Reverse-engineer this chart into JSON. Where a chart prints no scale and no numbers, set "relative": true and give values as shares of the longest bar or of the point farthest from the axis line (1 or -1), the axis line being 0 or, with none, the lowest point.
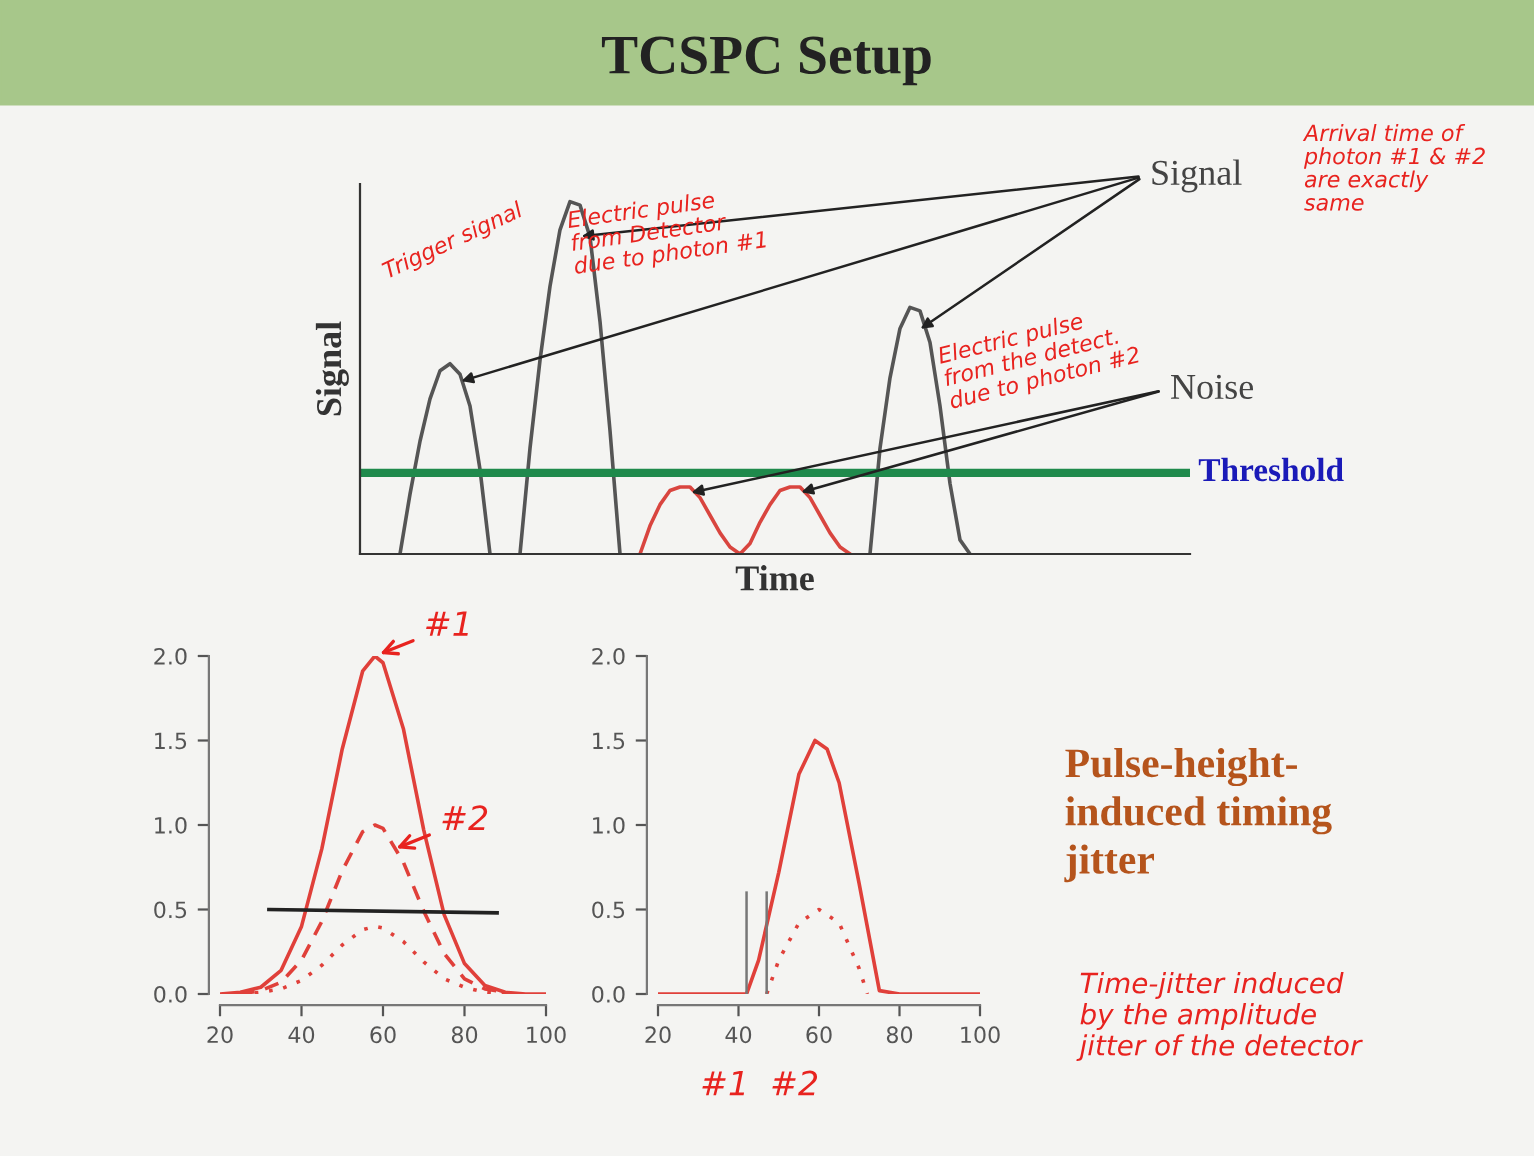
{
  "chart_data": [
    {
      "type": "line",
      "title": "TCSPC Setup",
      "xlabel": "Time",
      "ylabel": "Signal",
      "relative": true,
      "grid": false,
      "categories": [
        null,
        null,
        null,
        null,
        null,
        null,
        null,
        null,
        null,
        null,
        null,
        null,
        null,
        null,
        null,
        null,
        null,
        null,
        null,
        null,
        null,
        null,
        null,
        null,
        null,
        null,
        null,
        null,
        null,
        null,
        null,
        null,
        null,
        null,
        null,
        null,
        null,
        null,
        null,
        null,
        null,
        null,
        null,
        null,
        null,
        null,
        null,
        null,
        null,
        null,
        null,
        null,
        null,
        null,
        null,
        null,
        null,
        null,
        null,
        null,
        null,
        null,
        null,
        null,
        null,
        null,
        null,
        null,
        null,
        null,
        null,
        null,
        null,
        null,
        null,
        null,
        null,
        null,
        null,
        null,
        null,
        null,
        null,
        null
      ],
      "series": [
        {
          "name": "Signal",
          "color": "#555555",
          "values": [
            null,
            null,
            null,
            null,
            0,
            0.17,
            0.32,
            0.44,
            0.52,
            0.54,
            0.51,
            0.42,
            0.24,
            0,
            null,
            null,
            0,
            0.3,
            0.55,
            0.76,
            0.92,
            1.0,
            0.99,
            0.9,
            0.66,
            0.35,
            0,
            null,
            null,
            null,
            null,
            null,
            null,
            null,
            null,
            null,
            null,
            null,
            null,
            null,
            null,
            null,
            null,
            null,
            null,
            null,
            null,
            null,
            null,
            null,
            null,
            0,
            0.3,
            0.5,
            0.64,
            0.7,
            0.69,
            0.6,
            0.42,
            0.2,
            0.04,
            0,
            null,
            null,
            null,
            null,
            null,
            null,
            null,
            null,
            null,
            null,
            null,
            null,
            null,
            null,
            null,
            null,
            null,
            null,
            null,
            null,
            null,
            null
          ]
        },
        {
          "name": "Noise",
          "color": "#d9453f",
          "values": [
            null,
            null,
            null,
            null,
            null,
            null,
            null,
            null,
            null,
            null,
            null,
            null,
            null,
            null,
            null,
            null,
            null,
            null,
            null,
            null,
            null,
            null,
            null,
            null,
            null,
            null,
            null,
            null,
            0,
            0.08,
            0.14,
            0.18,
            0.19,
            0.19,
            0.16,
            0.11,
            0.06,
            0.02,
            0,
            0.03,
            0.09,
            0.14,
            0.18,
            0.19,
            0.19,
            0.16,
            0.11,
            0.06,
            0.02,
            0,
            null,
            null,
            null,
            null,
            null,
            null,
            null,
            null,
            null,
            null,
            null,
            null,
            null,
            null,
            null,
            null,
            null,
            null,
            null,
            null,
            null,
            null,
            null,
            null,
            null,
            null,
            null,
            null,
            null,
            null,
            null,
            null,
            null,
            null
          ]
        }
      ],
      "ref_lines": [
        {
          "axis": "y",
          "value": 0.23,
          "label": "Threshold",
          "color": "#1f8a4c"
        }
      ],
      "annotations": [
        "Trigger signal",
        "Electric pulse\nfrom Detector\ndue to photon #1",
        "Electric pulse\nfrom the detect.\ndue to photon #2",
        "Arrival time of\nphoton #1 & #2\nare exactly\nsame"
      ]
    },
    {
      "type": "line",
      "xlim": [
        20,
        100
      ],
      "ylim": [
        0,
        2.0
      ],
      "xticks": [
        20,
        40,
        60,
        80,
        100
      ],
      "yticks": [
        {
          "value": 0,
          "label": "0.0"
        },
        {
          "value": 0.5,
          "label": "0.5"
        },
        {
          "value": 1.0,
          "label": "1.0"
        },
        {
          "value": 1.5,
          "label": "1.5"
        },
        {
          "value": 2.0,
          "label": "2.0"
        }
      ],
      "grid": false,
      "series": [
        {
          "color": "#e0403a",
          "line_style": "solid",
          "x": [
            20,
            25,
            30,
            35,
            40,
            45,
            50,
            55,
            58,
            60,
            65,
            70,
            75,
            80,
            85,
            90,
            95,
            100
          ],
          "values": [
            0,
            0.01,
            0.04,
            0.14,
            0.4,
            0.86,
            1.45,
            1.91,
            2.0,
            1.96,
            1.57,
            0.97,
            0.47,
            0.18,
            0.05,
            0.01,
            0,
            0
          ]
        },
        {
          "color": "#e0403a",
          "line_style": "dashed",
          "x": [
            25,
            30,
            35,
            40,
            45,
            50,
            55,
            58,
            60,
            65,
            70,
            75,
            80,
            85,
            90
          ],
          "values": [
            0,
            0.02,
            0.07,
            0.2,
            0.43,
            0.73,
            0.96,
            1.0,
            0.98,
            0.78,
            0.49,
            0.24,
            0.09,
            0.03,
            0.01
          ]
        },
        {
          "color": "#e0403a",
          "line_style": "dotted",
          "x": [
            25,
            30,
            35,
            40,
            45,
            50,
            55,
            58,
            60,
            65,
            70,
            75,
            80,
            85,
            90
          ],
          "values": [
            0,
            0.01,
            0.03,
            0.08,
            0.17,
            0.29,
            0.38,
            0.4,
            0.39,
            0.31,
            0.19,
            0.09,
            0.04,
            0.01,
            0
          ]
        },
        {
          "color": "#222222",
          "line_style": "solid",
          "x": [
            32,
            88
          ],
          "values": [
            0.5,
            0.48
          ]
        }
      ],
      "annotations": [
        {
          "text": "#1",
          "x": 58,
          "y": 2.0
        },
        {
          "text": "#2",
          "x": 62,
          "y": 0.85
        }
      ]
    },
    {
      "type": "line",
      "xlim": [
        20,
        100
      ],
      "ylim": [
        0,
        2.0
      ],
      "xticks": [
        20,
        40,
        60,
        80,
        100
      ],
      "yticks": [
        {
          "value": 0,
          "label": "0.0"
        },
        {
          "value": 0.5,
          "label": "0.5"
        },
        {
          "value": 1.0,
          "label": "1.0"
        },
        {
          "value": 1.5,
          "label": "1.5"
        },
        {
          "value": 2.0,
          "label": "2.0"
        }
      ],
      "grid": false,
      "series": [
        {
          "color": "#e0403a",
          "line_style": "solid",
          "x": [
            20,
            40,
            42,
            45,
            50,
            55,
            59,
            62,
            65,
            70,
            75,
            80,
            100
          ],
          "values": [
            0,
            0,
            0,
            0.2,
            0.72,
            1.3,
            1.5,
            1.45,
            1.25,
            0.65,
            0.02,
            0,
            0
          ]
        },
        {
          "color": "#e0403a",
          "line_style": "dotted",
          "x": [
            47,
            50,
            55,
            60,
            65,
            70,
            72
          ],
          "values": [
            0,
            0.2,
            0.42,
            0.5,
            0.42,
            0.15,
            0
          ]
        }
      ],
      "ref_lines": [
        {
          "axis": "x",
          "value": 42,
          "color": "#777777"
        },
        {
          "axis": "x",
          "value": 47,
          "color": "#777777"
        }
      ],
      "annotations": [
        "#1",
        "#2"
      ]
    },
    {
      "type": "other",
      "title": "Pulse-height-\ninduced timing\njitter",
      "annotations": [
        "Time-jitter induced\nby the amplitude\njitter of the detector"
      ]
    }
  ]
}
